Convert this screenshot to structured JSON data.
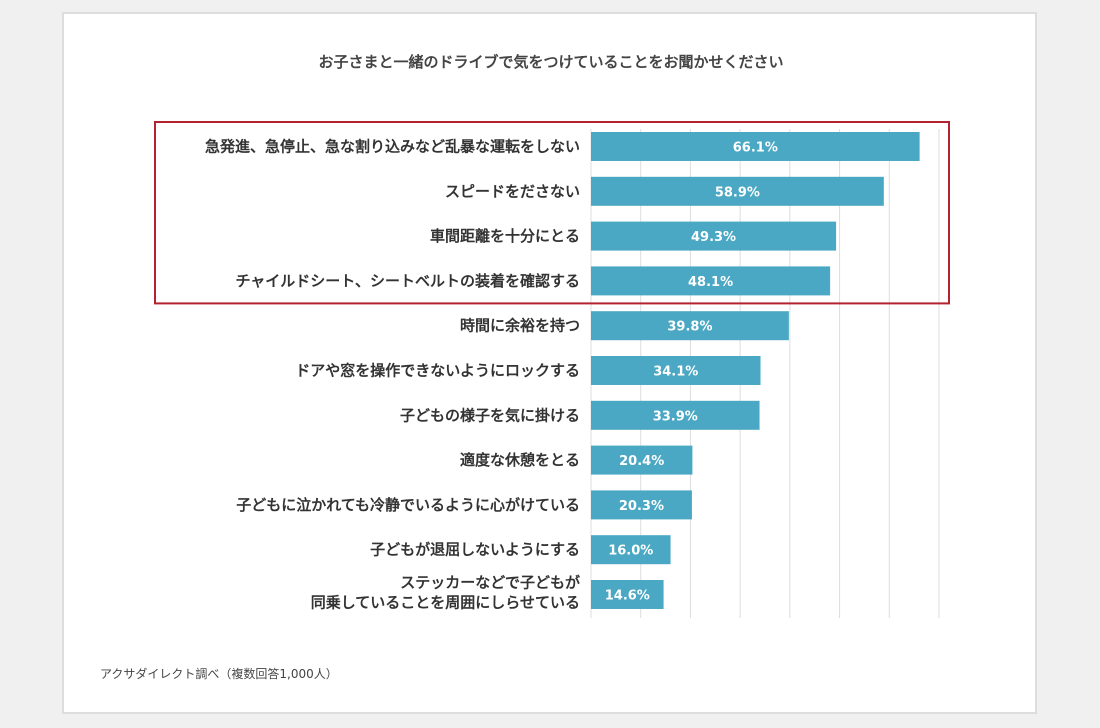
{
  "chart_data": {
    "type": "bar",
    "orientation": "horizontal",
    "title": "お子さまと一緒のドライブで気をつけていることをお聞かせください",
    "note": "アクサダイレクト調べ（複数回答1,000人）",
    "categories": [
      [
        "急発進、急停止、急な割り込みなど乱暴な運転をしない"
      ],
      [
        "スピードをださない"
      ],
      [
        "車間距離を十分にとる"
      ],
      [
        "チャイルドシート、シートベルトの装着を確認する"
      ],
      [
        "時間に余裕を持つ"
      ],
      [
        "ドアや窓を操作できないようにロックする"
      ],
      [
        "子どもの様子を気に掛ける"
      ],
      [
        "適度な休憩をとる"
      ],
      [
        "子どもに泣かれても冷静でいるように心がけている"
      ],
      [
        "子どもが退屈しないようにする"
      ],
      [
        "ステッカーなどで子どもが",
        "同乗していることを周囲にしらせている"
      ]
    ],
    "values": [
      66.1,
      58.9,
      49.3,
      48.1,
      39.8,
      34.1,
      33.9,
      20.4,
      20.3,
      16.0,
      14.6
    ],
    "value_labels": [
      "66.1%",
      "58.9%",
      "49.3%",
      "48.1%",
      "39.8%",
      "34.1%",
      "33.9%",
      "20.4%",
      "20.3%",
      "16.0%",
      "14.6%"
    ],
    "xlim": [
      0,
      70
    ],
    "grid": true,
    "highlight": {
      "from_index": 0,
      "to_index": 3,
      "color": "#b5222f"
    },
    "colors": {
      "bar": "#4aa8c4",
      "value_text": "#ffffff",
      "label_text": "#333333",
      "grid": "#dddddd"
    }
  }
}
